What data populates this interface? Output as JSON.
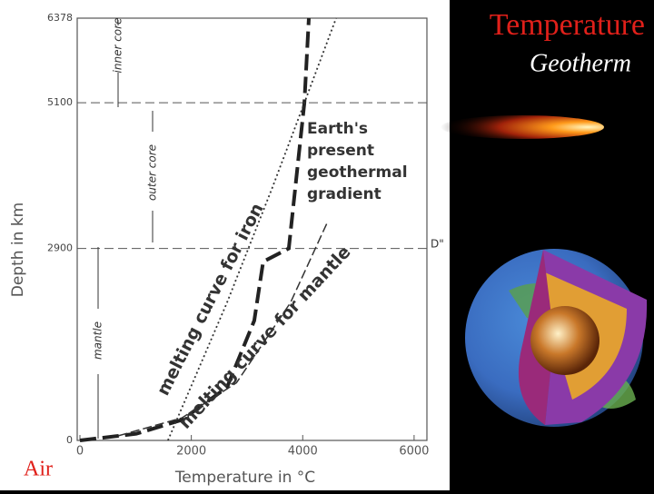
{
  "slide": {
    "title": "Temperature",
    "subtitle": "Geotherm",
    "footer": "Air"
  },
  "chart_data": {
    "type": "line",
    "x_label": "Temperature  in  °C",
    "y_label": "Depth in km",
    "xlim": [
      0,
      6230
    ],
    "xticks": [
      0,
      2000,
      4000,
      6000
    ],
    "ylim": [
      0,
      6378
    ],
    "yticks": [
      0,
      2900,
      5100,
      6378
    ],
    "grid": true,
    "annotations": [
      "inner core",
      "outer core",
      "mantle",
      "D\""
    ],
    "series": [
      {
        "name": "Earth's present geothermal gradient",
        "color": "#222222",
        "line_style": "thick-dashed",
        "x": [
          0,
          1010,
          1830,
          2640,
          3130,
          3290,
          3750,
          4030,
          4110
        ],
        "values": [
          0,
          100,
          310,
          800,
          1810,
          2700,
          2900,
          5100,
          6378
        ]
      },
      {
        "name": "melting curve for iron",
        "color": "#333333",
        "line_style": "dotted",
        "x": [
          1580,
          2640,
          3460,
          4030,
          4600
        ],
        "values": [
          0,
          2080,
          3830,
          5100,
          6378
        ]
      },
      {
        "name": "melting curve for mantle",
        "color": "#333333",
        "line_style": "thin-dashed",
        "x": [
          690,
          1830,
          2810,
          3780,
          4440
        ],
        "values": [
          70,
          340,
          870,
          2080,
          3290
        ]
      }
    ]
  }
}
